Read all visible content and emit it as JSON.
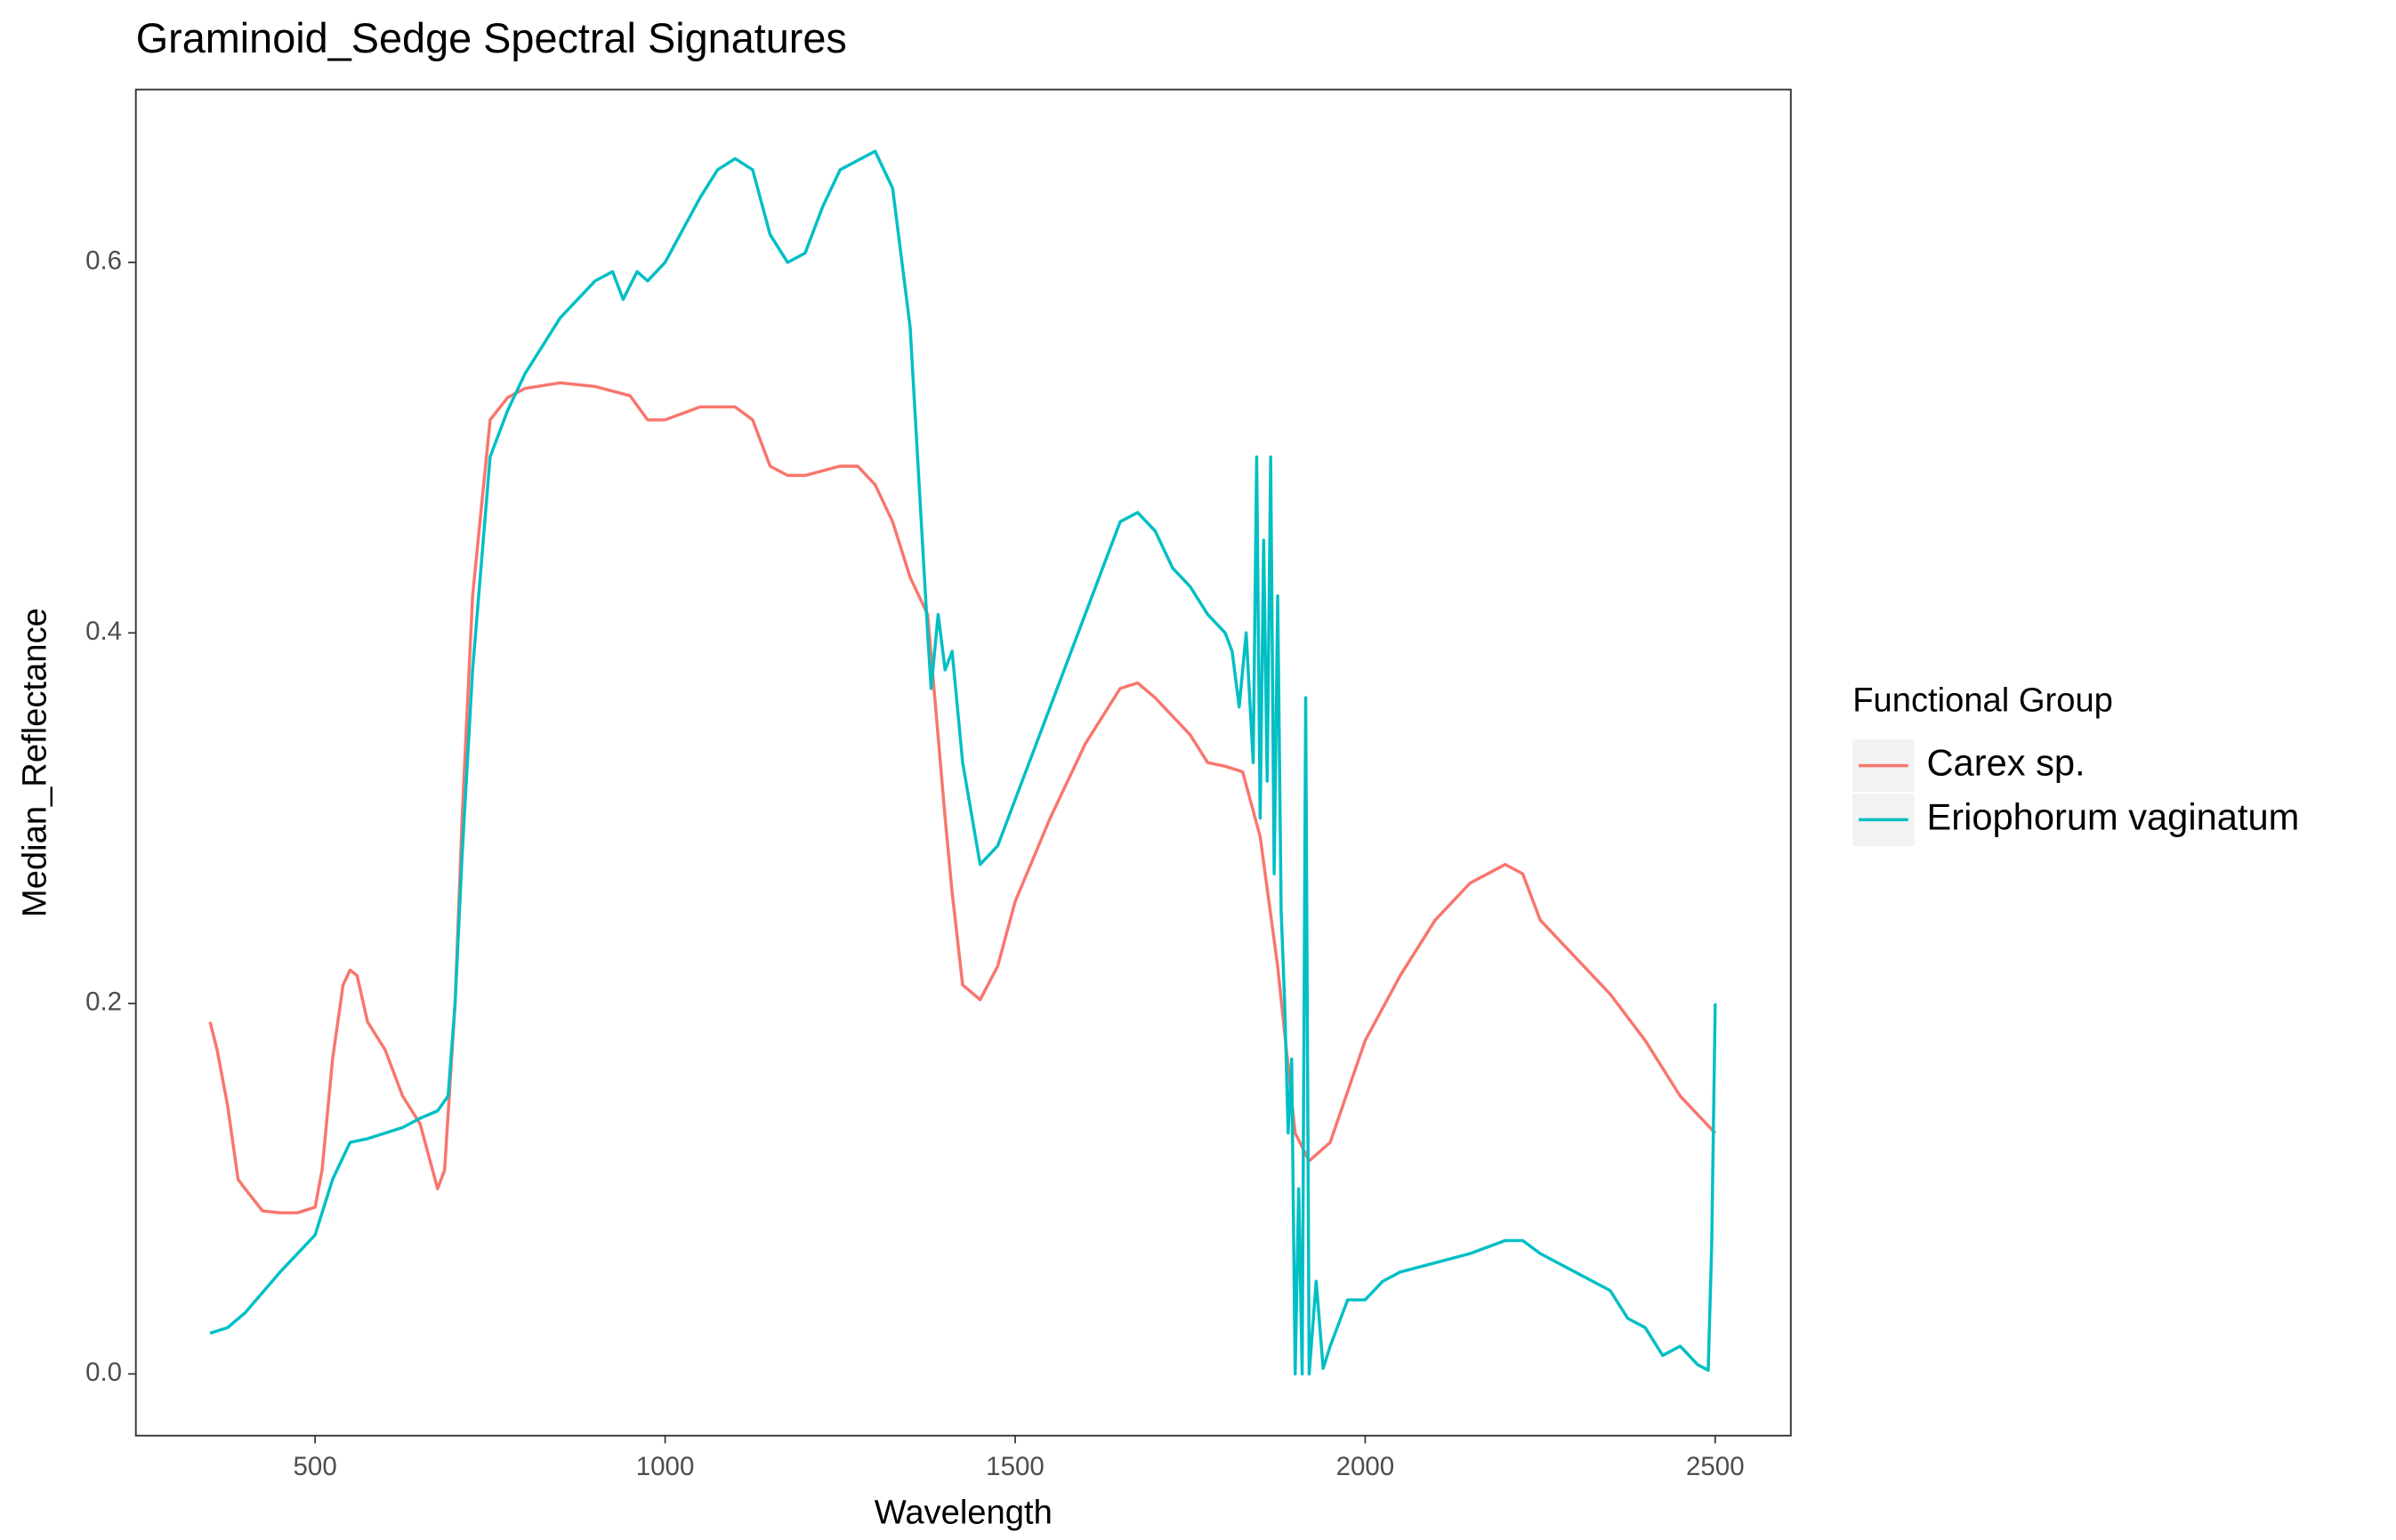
{
  "chart_data": {
    "type": "line",
    "title": "Graminoid_Sedge Spectral Signatures",
    "x_label": "Wavelength",
    "y_label": "Median_Reflectance",
    "legend_title": "Functional Group",
    "legend_position": "right",
    "grid": false,
    "xlim": [
      244,
      2608
    ],
    "ylim": [
      -0.0333,
      0.6933
    ],
    "xticks": [
      500,
      1000,
      1500,
      2000,
      2500
    ],
    "yticks": [
      {
        "value": 0,
        "label": "0.0"
      },
      0.2,
      0.4,
      0.6
    ],
    "series": [
      {
        "name": "Carex sp.",
        "color": "#F8766D",
        "x": [
          350,
          360,
          375,
          390,
          400,
          425,
          450,
          475,
          500,
          510,
          525,
          540,
          550,
          560,
          575,
          600,
          625,
          650,
          675,
          685,
          700,
          710,
          725,
          750,
          775,
          800,
          850,
          900,
          950,
          975,
          1000,
          1050,
          1100,
          1125,
          1150,
          1175,
          1200,
          1250,
          1275,
          1300,
          1325,
          1350,
          1375,
          1400,
          1410,
          1425,
          1450,
          1475,
          1500,
          1550,
          1600,
          1650,
          1675,
          1700,
          1750,
          1775,
          1800,
          1825,
          1850,
          1875,
          1900,
          1920,
          1950,
          2000,
          2050,
          2100,
          2150,
          2200,
          2225,
          2250,
          2300,
          2350,
          2400,
          2450,
          2500
        ],
        "values": [
          0.19,
          0.175,
          0.145,
          0.105,
          0.1,
          0.088,
          0.087,
          0.087,
          0.09,
          0.11,
          0.17,
          0.21,
          0.218,
          0.215,
          0.19,
          0.175,
          0.15,
          0.135,
          0.1,
          0.11,
          0.2,
          0.3,
          0.42,
          0.515,
          0.527,
          0.532,
          0.535,
          0.533,
          0.528,
          0.515,
          0.515,
          0.522,
          0.522,
          0.515,
          0.49,
          0.485,
          0.485,
          0.49,
          0.49,
          0.48,
          0.46,
          0.43,
          0.41,
          0.3,
          0.26,
          0.21,
          0.202,
          0.22,
          0.255,
          0.3,
          0.34,
          0.37,
          0.373,
          0.365,
          0.345,
          0.33,
          0.328,
          0.325,
          0.29,
          0.22,
          0.13,
          0.115,
          0.125,
          0.18,
          0.215,
          0.245,
          0.265,
          0.275,
          0.27,
          0.245,
          0.225,
          0.205,
          0.18,
          0.15,
          0.13
        ]
      },
      {
        "name": "Eriophorum vaginatum",
        "color": "#00BFC4",
        "x": [
          350,
          375,
          400,
          450,
          500,
          525,
          550,
          575,
          600,
          625,
          650,
          675,
          690,
          700,
          710,
          725,
          750,
          775,
          800,
          850,
          900,
          925,
          940,
          960,
          975,
          1000,
          1050,
          1075,
          1100,
          1125,
          1150,
          1175,
          1200,
          1225,
          1250,
          1275,
          1300,
          1325,
          1350,
          1375,
          1380,
          1390,
          1400,
          1410,
          1425,
          1450,
          1475,
          1500,
          1550,
          1600,
          1650,
          1675,
          1700,
          1725,
          1750,
          1775,
          1800,
          1810,
          1820,
          1830,
          1840,
          1845,
          1850,
          1855,
          1860,
          1865,
          1870,
          1875,
          1880,
          1885,
          1890,
          1895,
          1900,
          1905,
          1910,
          1915,
          1920,
          1930,
          1940,
          1950,
          1975,
          2000,
          2025,
          2050,
          2100,
          2150,
          2200,
          2225,
          2250,
          2300,
          2350,
          2375,
          2400,
          2425,
          2450,
          2475,
          2490,
          2495,
          2500
        ],
        "values": [
          0.022,
          0.025,
          0.033,
          0.055,
          0.075,
          0.105,
          0.125,
          0.127,
          0.13,
          0.133,
          0.138,
          0.142,
          0.15,
          0.2,
          0.28,
          0.38,
          0.495,
          0.52,
          0.54,
          0.57,
          0.59,
          0.595,
          0.58,
          0.595,
          0.59,
          0.6,
          0.635,
          0.65,
          0.656,
          0.65,
          0.615,
          0.6,
          0.605,
          0.63,
          0.65,
          0.655,
          0.66,
          0.64,
          0.565,
          0.4,
          0.37,
          0.41,
          0.38,
          0.39,
          0.33,
          0.275,
          0.285,
          0.31,
          0.36,
          0.41,
          0.46,
          0.465,
          0.455,
          0.435,
          0.425,
          0.41,
          0.4,
          0.39,
          0.36,
          0.4,
          0.33,
          0.495,
          0.3,
          0.45,
          0.32,
          0.495,
          0.27,
          0.42,
          0.25,
          0.2,
          0.13,
          0.17,
          0,
          0.1,
          0,
          0.365,
          0,
          0.05,
          0.003,
          0.015,
          0.04,
          0.04,
          0.05,
          0.055,
          0.06,
          0.065,
          0.072,
          0.072,
          0.065,
          0.055,
          0.045,
          0.03,
          0.025,
          0.01,
          0.015,
          0.005,
          0.002,
          0.07,
          0.2
        ]
      }
    ]
  }
}
